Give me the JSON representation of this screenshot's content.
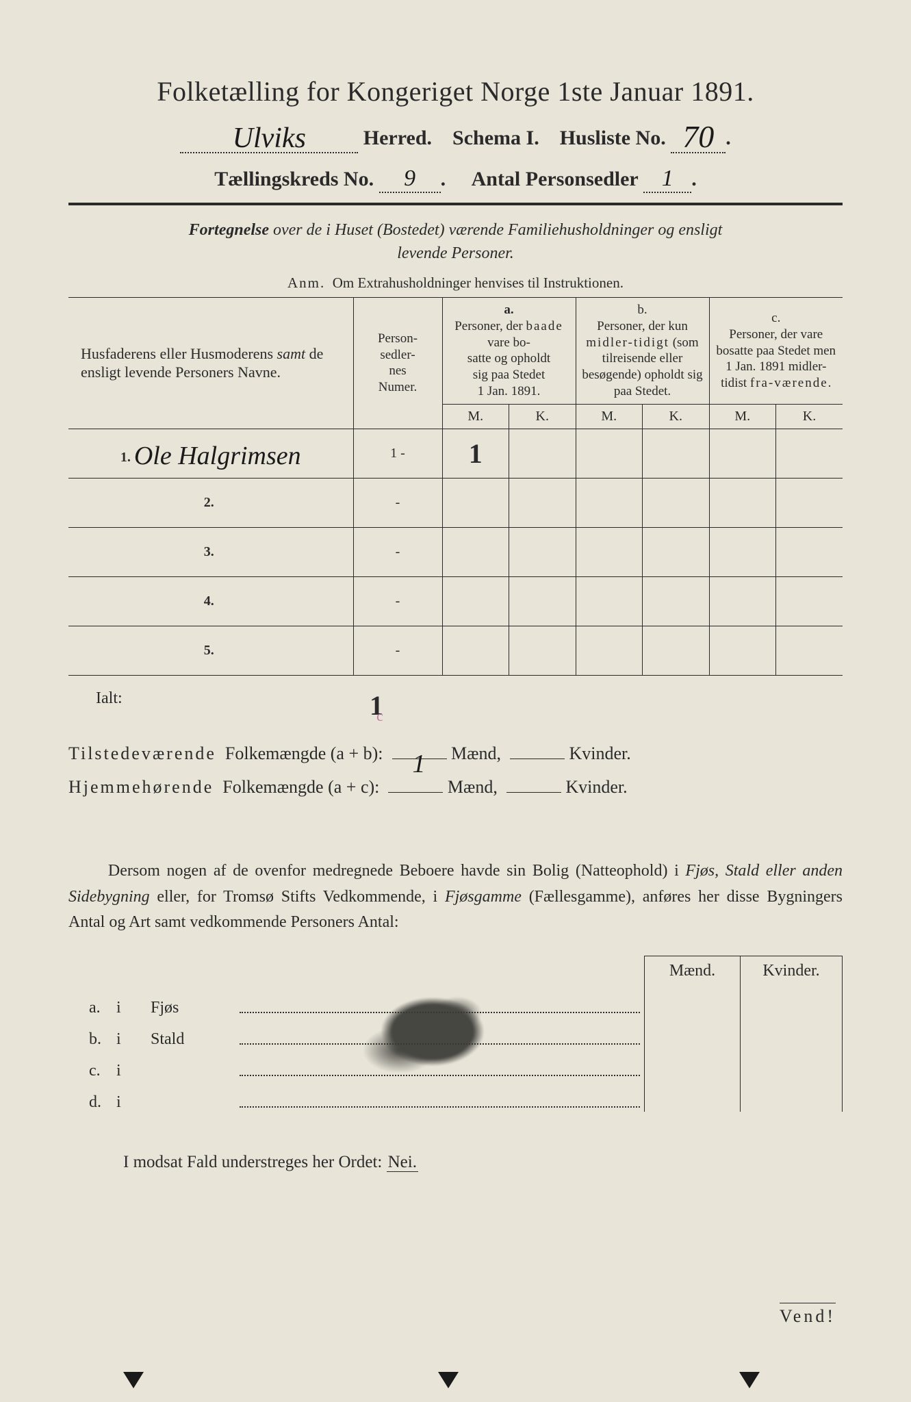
{
  "colors": {
    "paper": "#e8e4d8",
    "ink": "#2a2a2a",
    "pink": "#c77aa8",
    "stain": "#3a3a36"
  },
  "title": "Folketælling for Kongeriget Norge 1ste Januar 1891.",
  "line2": {
    "herred_value": "Ulviks",
    "herred_label": "Herred.",
    "schema_label": "Schema I.",
    "husliste_label": "Husliste No.",
    "husliste_value": "70"
  },
  "line3": {
    "kreds_label": "Tællingskreds No.",
    "kreds_value": "9",
    "antal_label": "Antal Personsedler",
    "antal_value": "1"
  },
  "subtitle": "Fortegnelse over de i Huset (Bostedet) værende Familiehusholdninger og ensligt levende Personer.",
  "anm_label": "Anm.",
  "anm_text": "Om Extrahusholdninger henvises til Instruktionen.",
  "table": {
    "head": {
      "names": "Husfaderens eller Husmoderens samt de ensligt levende Personers Navne.",
      "numer": "Person-sedler-nes Numer.",
      "col_a_tag": "a.",
      "col_a": "Personer, der baade vare bosatte og opholdt sig paa Stedet 1 Jan. 1891.",
      "col_b_tag": "b.",
      "col_b": "Personer, der kun midler-tidigt (som tilreisende eller besøgende) opholdt sig paa Stedet.",
      "col_c_tag": "c.",
      "col_c": "Personer, der vare bosatte paa Stedet men 1 Jan. 1891 midler-tidigt fra-værende.",
      "m": "M.",
      "k": "K."
    },
    "rows": [
      {
        "n": "1.",
        "name": "Ole Halgrimsen",
        "numer": "1 -",
        "a_m": "1",
        "a_k": "",
        "b_m": "",
        "b_k": "",
        "c_m": "",
        "c_k": ""
      },
      {
        "n": "2.",
        "name": "",
        "numer": "-",
        "a_m": "",
        "a_k": "",
        "b_m": "",
        "b_k": "",
        "c_m": "",
        "c_k": ""
      },
      {
        "n": "3.",
        "name": "",
        "numer": "-",
        "a_m": "",
        "a_k": "",
        "b_m": "",
        "b_k": "",
        "c_m": "",
        "c_k": ""
      },
      {
        "n": "4.",
        "name": "",
        "numer": "-",
        "a_m": "",
        "a_k": "",
        "b_m": "",
        "b_k": "",
        "c_m": "",
        "c_k": ""
      },
      {
        "n": "5.",
        "name": "",
        "numer": "-",
        "a_m": "",
        "a_k": "",
        "b_m": "",
        "b_k": "",
        "c_m": "",
        "c_k": ""
      }
    ]
  },
  "ialt": {
    "label": "Ialt:",
    "mark": "1",
    "pink": "c"
  },
  "summary": {
    "line1_a": "Tilstedeværende",
    "line1_b": "Folkemængde (a + b):",
    "line1_maend_val": "1",
    "line2_a": "Hjemmehørende",
    "line2_b": "Folkemængde (a + c):",
    "maend": "Mænd,",
    "kvinder": "Kvinder."
  },
  "bodytext": "Dersom nogen af de ovenfor medregnede Beboere havde sin Bolig (Natteophold) i Fjøs, Stald eller anden Sidebygning eller, for Tromsø Stifts Vedkommende, i Fjøsgamme (Fællesgamme), anføres her disse Bygningers Antal og Art samt vedkommende Personers Antal:",
  "buildings": {
    "head_m": "Mænd.",
    "head_k": "Kvinder.",
    "rows": [
      {
        "lbl": "a.",
        "i": "i",
        "type": "Fjøs"
      },
      {
        "lbl": "b.",
        "i": "i",
        "type": "Stald"
      },
      {
        "lbl": "c.",
        "i": "i",
        "type": ""
      },
      {
        "lbl": "d.",
        "i": "i",
        "type": ""
      }
    ]
  },
  "footer": "I modsat Fald understreges her Ordet:",
  "nei": "Nei.",
  "vend": "Vend!"
}
